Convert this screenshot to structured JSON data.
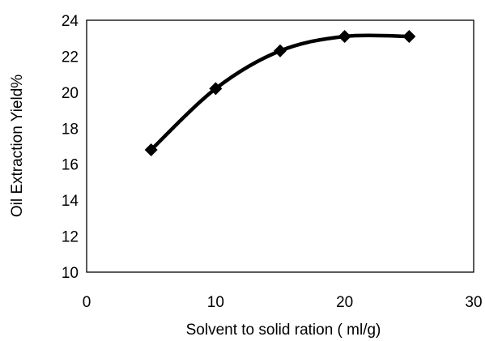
{
  "chart_data": {
    "type": "line",
    "title": "",
    "xlabel": "Solvent to solid ration ( ml/g)",
    "ylabel": "Oil Extraction Yield%",
    "xlim": [
      0,
      30
    ],
    "ylim": [
      10,
      24
    ],
    "x_ticks": [
      0,
      10,
      20,
      30
    ],
    "y_ticks": [
      10,
      12,
      14,
      16,
      18,
      20,
      22,
      24
    ],
    "grid": false,
    "legend": "none",
    "line_style": "smoothed",
    "marker": "diamond",
    "colors": {
      "line": "#000000",
      "marker": "#000000"
    },
    "series": [
      {
        "x": [
          5,
          10,
          15,
          20,
          25
        ],
        "values": [
          16.8,
          20.2,
          22.3,
          23.1,
          23.1
        ]
      }
    ]
  }
}
